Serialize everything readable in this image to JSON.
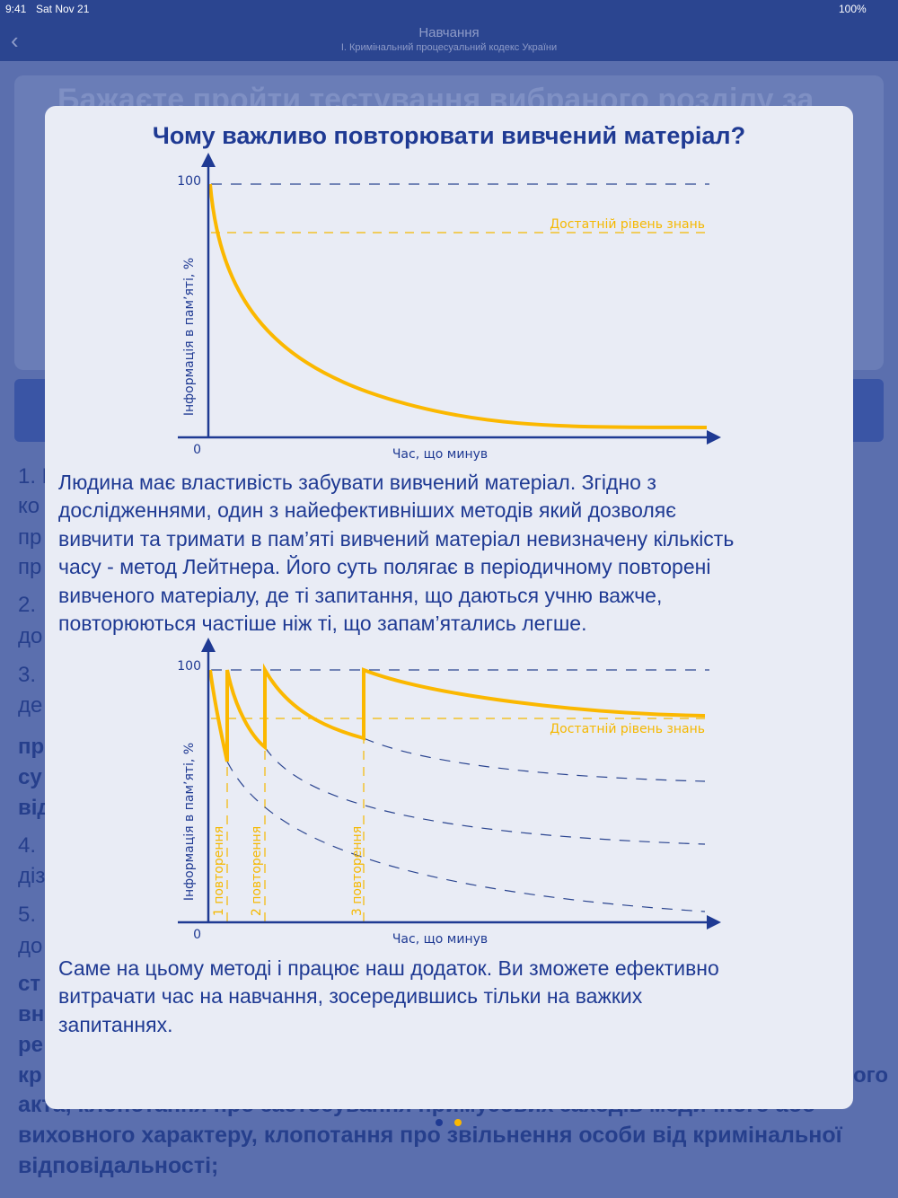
{
  "status_bar": {
    "time": "9:41",
    "date": "Sat Nov 21",
    "battery": "100%"
  },
  "nav": {
    "title": "Навчання",
    "subtitle": "I. Кримінальний процесуальний кодекс України"
  },
  "background": {
    "banner": "Бажаєте пройти тестування вибраного розділу за",
    "fragments": [
      "1. В",
      "ко",
      "пр",
      "пр",
      "2.",
      "до",
      "3.",
      "де",
      "пр",
      "су",
      "від",
      "4.",
      "діз",
      "5.",
      "до",
      "ст",
      "вн",
      "ре",
      "кр",
      "ого"
    ],
    "lines": [
      "акта, клопотання про застосування примусових заходів медичного або",
      "виховного характеру, клопотання про звільнення особи від кримінальної",
      "відповідальності;"
    ]
  },
  "modal": {
    "title": "Чому важливо повторювати вивчений матеріал?",
    "figure1": {
      "y_label": "Інформація в пам’яті, %",
      "x_label": "Час, що минув",
      "y_max": "100",
      "y_min": "0",
      "threshold": "Достатній рівень знань"
    },
    "paragraph1": [
      "Людина має властивість забувати вивчений матеріал. Згідно з",
      "дослідженнями, один з найефективніших методів який дозволяє",
      "вивчити та тримати в пам’яті вивчений матеріал невизначену кількість",
      "часу - метод Лейтнера. Його суть полягає в періодичному повторені",
      "вивченого матеріалу, де ті запитання, що даються учню важче,",
      "повторюються частіше ніж ті, що запам’ятались легше."
    ],
    "figure2": {
      "y_label": "Інформація в пам’яті, %",
      "x_label": "Час, що минув",
      "y_max": "100",
      "y_min": "0",
      "threshold": "Достатній рівень знань",
      "repetitions": [
        "1 повторення",
        "2 повторення",
        "3 повторення"
      ]
    },
    "paragraph2": [
      "Саме на цьому методі і працює наш додаток. Ви зможете ефективно",
      "витрачати час на навчання, зосередившись тільки на важких",
      "запитаннях."
    ]
  }
}
